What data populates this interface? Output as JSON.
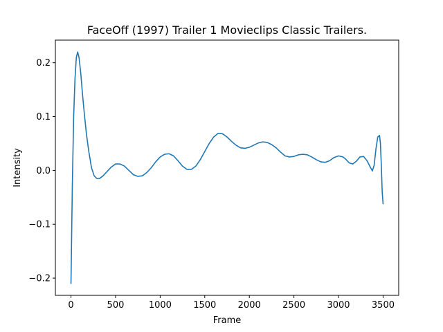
{
  "chart_data": {
    "type": "line",
    "title": "FaceOff (1997) Trailer 1  Movieclips Classic Trailers.",
    "xlabel": "Frame",
    "ylabel": "Intensity",
    "xlim": [
      -175,
      3675
    ],
    "ylim": [
      -0.232,
      0.242
    ],
    "xticks": [
      0,
      500,
      1000,
      1500,
      2000,
      2500,
      3000,
      3500
    ],
    "xtick_labels": [
      "0",
      "500",
      "1000",
      "1500",
      "2000",
      "2500",
      "3000",
      "3500"
    ],
    "yticks": [
      -0.2,
      -0.1,
      0.0,
      0.1,
      0.2
    ],
    "ytick_labels": [
      "−0.2",
      "−0.1",
      "0.0",
      "0.1",
      "0.2"
    ],
    "grid": false,
    "series": [
      {
        "color": "#1f77b4",
        "x": [
          0,
          15,
          30,
          45,
          60,
          75,
          90,
          110,
          130,
          150,
          175,
          200,
          230,
          260,
          290,
          320,
          360,
          400,
          450,
          500,
          550,
          600,
          650,
          700,
          750,
          800,
          850,
          900,
          950,
          1000,
          1050,
          1100,
          1150,
          1200,
          1250,
          1300,
          1350,
          1400,
          1450,
          1500,
          1550,
          1600,
          1650,
          1700,
          1750,
          1800,
          1850,
          1900,
          1950,
          2000,
          2050,
          2100,
          2150,
          2200,
          2250,
          2300,
          2350,
          2400,
          2450,
          2500,
          2550,
          2600,
          2650,
          2700,
          2750,
          2800,
          2850,
          2900,
          2950,
          3000,
          3050,
          3080,
          3120,
          3160,
          3200,
          3240,
          3280,
          3320,
          3360,
          3380,
          3400,
          3420,
          3440,
          3460,
          3470,
          3480,
          3490,
          3500
        ],
        "y": [
          -0.21,
          -0.03,
          0.1,
          0.17,
          0.21,
          0.22,
          0.21,
          0.18,
          0.14,
          0.105,
          0.065,
          0.035,
          0.005,
          -0.01,
          -0.015,
          -0.015,
          -0.01,
          -0.003,
          0.006,
          0.012,
          0.012,
          0.008,
          0.0,
          -0.008,
          -0.011,
          -0.01,
          -0.004,
          0.005,
          0.016,
          0.025,
          0.03,
          0.031,
          0.027,
          0.018,
          0.008,
          0.002,
          0.002,
          0.008,
          0.02,
          0.035,
          0.05,
          0.062,
          0.069,
          0.068,
          0.062,
          0.054,
          0.047,
          0.042,
          0.041,
          0.043,
          0.047,
          0.051,
          0.053,
          0.052,
          0.048,
          0.042,
          0.034,
          0.027,
          0.025,
          0.026,
          0.029,
          0.03,
          0.029,
          0.025,
          0.02,
          0.016,
          0.015,
          0.018,
          0.024,
          0.027,
          0.025,
          0.021,
          0.014,
          0.012,
          0.017,
          0.025,
          0.026,
          0.018,
          0.005,
          -0.001,
          0.01,
          0.04,
          0.062,
          0.065,
          0.05,
          0.01,
          -0.04,
          -0.062
        ]
      }
    ]
  }
}
